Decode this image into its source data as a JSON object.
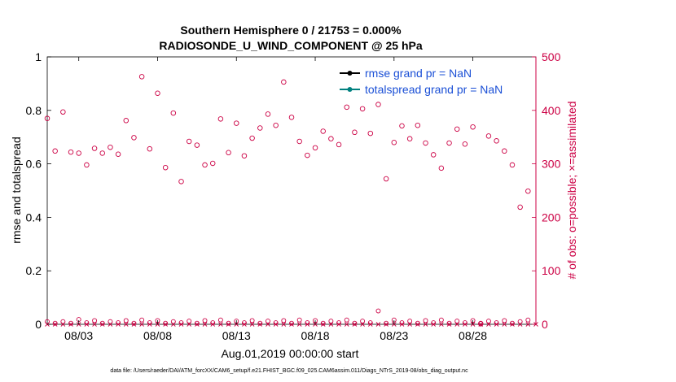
{
  "chart_data": {
    "type": "scatter",
    "title": "Southern Hemisphere 0 / 21753 = 0.000%",
    "subtitle": "RADIOSONDE_U_WIND_COMPONENT @ 25 hPa",
    "xlabel": "Aug.01,2019 00:00:00 start",
    "ylabel_left": "rmse and totalspread",
    "ylabel_right": "# of obs: o=possible; ×=assimilated",
    "footer": "data file: /Users/raeder/DAI/ATM_forcXX/CAM6_setup/f.e21.FHIST_BGC.f09_025.CAM6assim.011/Diags_NTrS_2019-08/obs_diag_output.nc",
    "xlim": [
      1,
      32
    ],
    "ylim_left": [
      0,
      1
    ],
    "ylim_right": [
      0,
      500
    ],
    "xticks": [
      {
        "value": 3,
        "label": "08/03"
      },
      {
        "value": 8,
        "label": "08/08"
      },
      {
        "value": 13,
        "label": "08/13"
      },
      {
        "value": 18,
        "label": "08/18"
      },
      {
        "value": 23,
        "label": "08/23"
      },
      {
        "value": 28,
        "label": "08/28"
      }
    ],
    "yticks_left": [
      "0",
      "0.2",
      "0.4",
      "0.6",
      "0.8",
      "1"
    ],
    "yticks_right": [
      "0",
      "100",
      "200",
      "300",
      "400",
      "500"
    ],
    "legend": [
      {
        "name": "rmse grand pr = NaN",
        "color": "#000000"
      },
      {
        "name": "totalspread grand pr = NaN",
        "color": "#00807F"
      }
    ],
    "legend_position": "top-right",
    "grid": false,
    "colors": {
      "obs": "#CC0044",
      "left_axis": "#000000",
      "right_axis": "#CC0044"
    },
    "series": [
      {
        "name": "rmse grand pr = NaN",
        "values": []
      },
      {
        "name": "totalspread grand pr = NaN",
        "values": []
      },
      {
        "marker": "o",
        "x": [
          1.0,
          1.5,
          2.0,
          2.5,
          3.0,
          3.5,
          4.0,
          4.5,
          5.0,
          5.5,
          6.0,
          6.5,
          7.0,
          7.5,
          8.0,
          8.5,
          9.0,
          9.5,
          10.0,
          10.5,
          11.0,
          11.5,
          12.0,
          12.5,
          13.0,
          13.5,
          14.0,
          14.5,
          15.0,
          15.5,
          16.0,
          16.5,
          17.0,
          17.5,
          18.0,
          18.5,
          19.0,
          19.5,
          20.0,
          20.5,
          21.0,
          21.5,
          22.0,
          22.5,
          23.0,
          23.5,
          24.0,
          24.5,
          25.0,
          25.5,
          26.0,
          26.5,
          27.0,
          27.5,
          28.0,
          28.5,
          29.0,
          29.5,
          30.0,
          30.5,
          31.0,
          31.5
        ],
        "y": [
          385,
          324,
          397,
          322,
          320,
          298,
          329,
          320,
          331,
          318,
          381,
          349,
          463,
          328,
          432,
          293,
          395,
          267,
          342,
          335,
          298,
          301,
          384,
          321,
          376,
          315,
          348,
          367,
          393,
          372,
          453,
          387,
          342,
          316,
          330,
          361,
          347,
          336,
          406,
          359,
          403,
          357,
          411,
          272,
          340,
          371,
          347,
          372,
          339,
          317,
          292,
          339,
          365,
          337,
          369,
          1,
          352,
          343,
          324,
          298,
          219,
          249
        ],
        "x_small": [
          1.0,
          1.5,
          2.0,
          2.5,
          3.0,
          3.5,
          4.0,
          4.5,
          5.0,
          5.5,
          6.0,
          6.5,
          7.0,
          7.5,
          8.0,
          8.5,
          9.0,
          9.5,
          10.0,
          10.5,
          11.0,
          11.5,
          12.0,
          12.5,
          13.0,
          13.5,
          14.0,
          14.5,
          15.0,
          15.5,
          16.0,
          16.5,
          17.0,
          17.5,
          18.0,
          18.5,
          19.0,
          19.5,
          20.0,
          20.5,
          21.0,
          21.5,
          22.0,
          22.5,
          23.0,
          23.5,
          24.0,
          24.5,
          25.0,
          25.5,
          26.0,
          26.5,
          27.0,
          27.5,
          28.0,
          28.5,
          29.0,
          29.5,
          30.0,
          30.5,
          31.0,
          31.5
        ],
        "y_small": [
          5,
          2,
          5,
          2,
          9,
          3,
          7,
          2,
          5,
          3,
          7,
          2,
          8,
          3,
          7,
          2,
          5,
          3,
          6,
          2,
          7,
          3,
          8,
          2,
          6,
          3,
          7,
          2,
          6,
          3,
          7,
          2,
          8,
          3,
          7,
          2,
          6,
          3,
          8,
          2,
          6,
          3,
          25,
          2,
          8,
          3,
          6,
          2,
          7,
          3,
          8,
          2,
          6,
          3,
          7,
          2,
          6,
          3,
          7,
          2,
          5,
          8
        ]
      },
      {
        "marker": "×",
        "y": 0,
        "count": 62
      }
    ]
  }
}
